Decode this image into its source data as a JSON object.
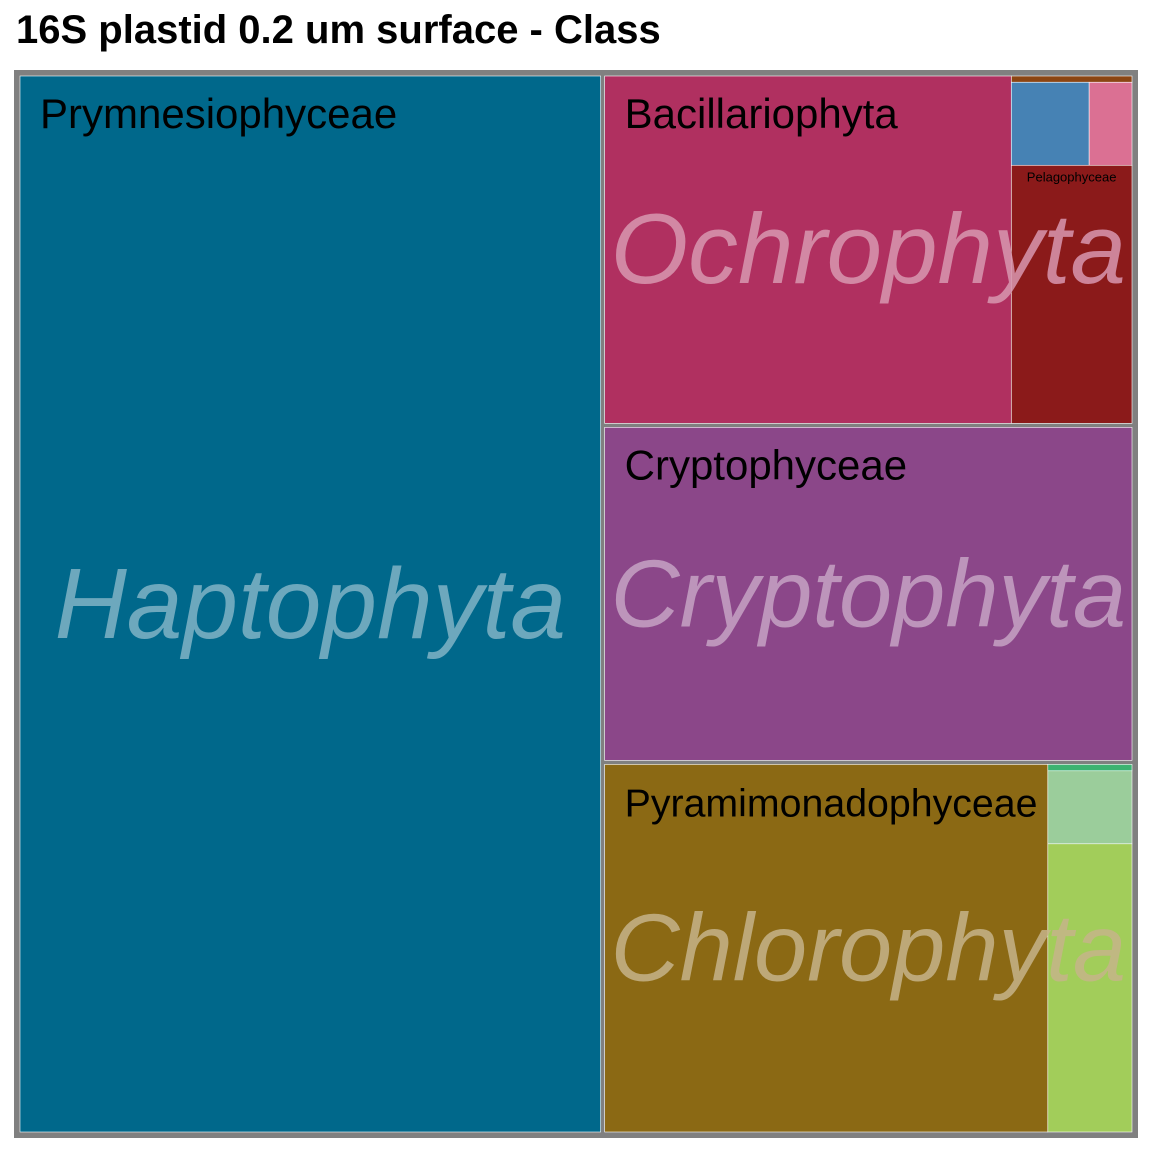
{
  "chart_data": {
    "type": "treemap",
    "title": "16S plastid 0.2 um surface - Class",
    "groups": [
      {
        "name": "Haptophyta",
        "color": "#00688B",
        "classes": [
          {
            "name": "Prymnesiophyceae",
            "value": 56.4,
            "color": "#00688B",
            "label_shown": true
          }
        ]
      },
      {
        "name": "Ochrophyta",
        "color": "#B03060",
        "classes": [
          {
            "name": "Bacillariophyta",
            "value": 13.1,
            "color": "#B03060",
            "label_shown": true
          },
          {
            "name": "Pelagophyceae",
            "value": 2.89,
            "color": "#8B1A1A",
            "label_shown": true
          },
          {
            "name": "",
            "value": 0.6,
            "color": "#4682B4",
            "label_shown": false
          },
          {
            "name": "",
            "value": 0.33,
            "color": "#DB7093",
            "label_shown": false
          },
          {
            "name": "",
            "value": 0.07,
            "color": "#8B4513",
            "label_shown": false
          }
        ]
      },
      {
        "name": "Cryptophyta",
        "color": "#8B4789",
        "classes": [
          {
            "name": "Cryptophyceae",
            "value": 16.3,
            "color": "#8B4789",
            "label_shown": true
          }
        ]
      },
      {
        "name": "Chlorophyta",
        "color": "#8B6914",
        "classes": [
          {
            "name": "Pyramimonadophyceae",
            "value": 15.1,
            "color": "#8B6914",
            "label_shown": true
          },
          {
            "name": "",
            "value": 2.25,
            "color": "#A2CD5A",
            "label_shown": false
          },
          {
            "name": "",
            "value": 0.57,
            "color": "#9BCD9B",
            "label_shown": false
          },
          {
            "name": "",
            "value": 0.05,
            "color": "#3CB371",
            "label_shown": false
          }
        ]
      }
    ],
    "border_color": "#808080"
  }
}
